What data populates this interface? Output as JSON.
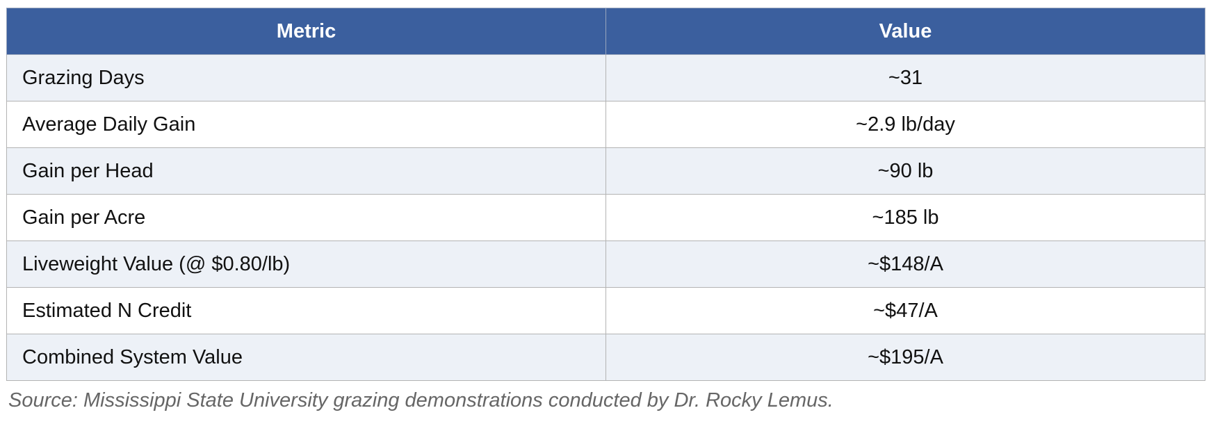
{
  "table": {
    "header": [
      "Metric",
      "Value"
    ],
    "rows": [
      [
        "Grazing Days",
        "~31"
      ],
      [
        "Average Daily Gain",
        "~2.9 lb/day"
      ],
      [
        "Gain per Head",
        "~90 lb"
      ],
      [
        "Gain per Acre",
        "~185 lb"
      ],
      [
        "Liveweight Value (@ $0.80/lb)",
        "~$148/A"
      ],
      [
        "Estimated N Credit",
        "~$47/A"
      ],
      [
        "Combined System Value",
        "~$195/A"
      ]
    ]
  },
  "source": "Source: Mississippi State University grazing demonstrations conducted by Dr. Rocky Lemus."
}
